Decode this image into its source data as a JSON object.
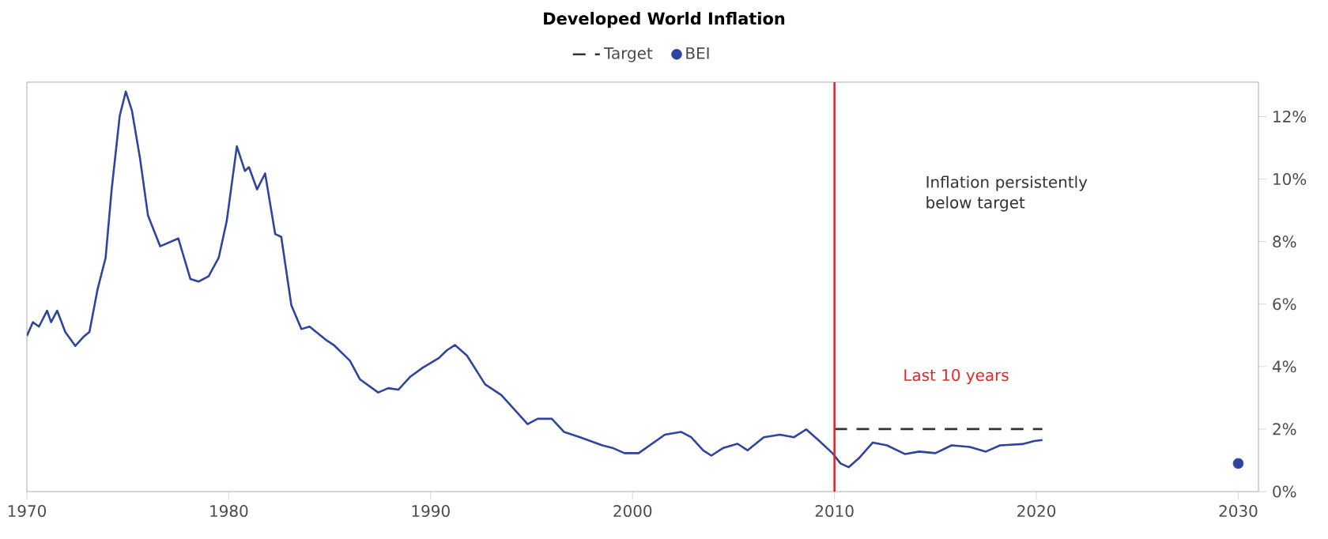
{
  "chart_data": {
    "type": "line",
    "title": "Developed World Inflation",
    "xlim": [
      1970,
      2031
    ],
    "ylim": [
      0,
      13.1
    ],
    "xticks": [
      1970,
      1980,
      1990,
      2000,
      2010,
      2020,
      2030
    ],
    "yticks": [
      {
        "value": 0,
        "label": "0%"
      },
      {
        "value": 2,
        "label": "2%"
      },
      {
        "value": 4,
        "label": "4%"
      },
      {
        "value": 6,
        "label": "6%"
      },
      {
        "value": 8,
        "label": "8%"
      },
      {
        "value": 10,
        "label": "10%"
      },
      {
        "value": 12,
        "label": "12%"
      }
    ],
    "legend": "top",
    "grid": false,
    "series": [
      {
        "color": "#2e45a0",
        "x": [
          1970,
          1970.3,
          1970.6,
          1971.0,
          1971.2,
          1971.5,
          1971.9,
          1972.4,
          1972.8,
          1973.1,
          1973.5,
          1973.9,
          1974.2,
          1974.6,
          1974.9,
          1975.2,
          1975.6,
          1976.0,
          1976.6,
          1977.5,
          1978.1,
          1978.5,
          1979.0,
          1979.5,
          1979.9,
          1980.4,
          1980.8,
          1981.0,
          1981.4,
          1981.8,
          1982.3,
          1982.6,
          1983.1,
          1983.6,
          1984.0,
          1984.8,
          1985.2,
          1986.0,
          1986.5,
          1987.4,
          1987.9,
          1988.4,
          1989.0,
          1989.6,
          1990.4,
          1990.8,
          1991.2,
          1991.8,
          1992.7,
          1993.5,
          1994.8,
          1995.3,
          1996.0,
          1996.6,
          1997.4,
          1998.5,
          1999.0,
          1999.6,
          2000.3,
          2001.6,
          2002.4,
          2002.9,
          2003.5,
          2003.9,
          2004.5,
          2005.2,
          2005.7,
          2006.5,
          2007.3,
          2008.0,
          2008.6,
          2009.2,
          2009.9,
          2010.3,
          2010.7,
          2011.2,
          2011.9,
          2012.6,
          2013.5,
          2014.2,
          2015.0,
          2015.8,
          2016.7,
          2017.5,
          2018.2,
          2019.3,
          2019.9,
          2020.3
        ],
        "values": [
          4.98,
          5.42,
          5.28,
          5.79,
          5.42,
          5.79,
          5.11,
          4.66,
          4.95,
          5.11,
          6.47,
          7.48,
          9.67,
          12.03,
          12.8,
          12.2,
          10.68,
          8.83,
          7.85,
          8.1,
          6.8,
          6.72,
          6.89,
          7.48,
          8.66,
          11.05,
          10.26,
          10.38,
          9.67,
          10.18,
          8.24,
          8.15,
          5.96,
          5.2,
          5.28,
          4.86,
          4.69,
          4.19,
          3.59,
          3.17,
          3.31,
          3.26,
          3.68,
          3.96,
          4.27,
          4.52,
          4.69,
          4.35,
          3.43,
          3.09,
          2.16,
          2.33,
          2.33,
          1.91,
          1.74,
          1.48,
          1.4,
          1.23,
          1.23,
          1.82,
          1.91,
          1.74,
          1.32,
          1.15,
          1.4,
          1.53,
          1.32,
          1.74,
          1.82,
          1.74,
          1.99,
          1.65,
          1.23,
          0.9,
          0.78,
          1.06,
          1.57,
          1.48,
          1.2,
          1.28,
          1.23,
          1.48,
          1.43,
          1.28,
          1.48,
          1.52,
          1.62,
          1.65
        ]
      },
      {
        "name": "Target",
        "color": "#333333",
        "line_style": "dashed",
        "x": [
          2010,
          2020.3
        ],
        "values": [
          2,
          2
        ]
      },
      {
        "name": "BEI",
        "type": "scatter",
        "color": "#2e45a0",
        "x": [
          2030
        ],
        "values": [
          0.9
        ]
      }
    ],
    "ref_lines": [
      {
        "axis": "x",
        "value": 2010,
        "label": "Last 10 years",
        "color": "#e5262b"
      }
    ],
    "annotations": [
      "Inflation persistently below target"
    ]
  }
}
